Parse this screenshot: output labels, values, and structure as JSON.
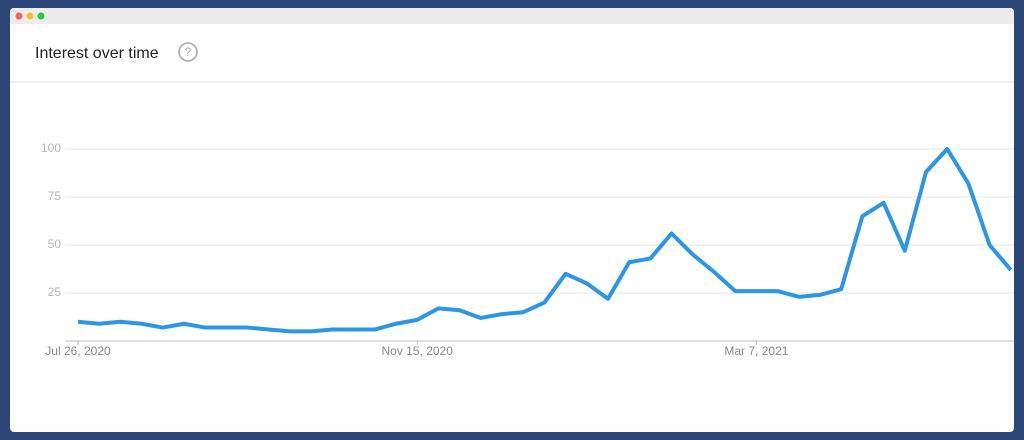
{
  "chart_data": {
    "type": "line",
    "title": "Interest over time",
    "categories": [
      "Jul 26, 2020",
      null,
      null,
      null,
      null,
      null,
      null,
      null,
      null,
      null,
      null,
      null,
      null,
      null,
      null,
      null,
      "Nov 15, 2020",
      null,
      null,
      null,
      null,
      null,
      null,
      null,
      null,
      null,
      null,
      null,
      null,
      null,
      null,
      null,
      "Mar 7, 2021",
      null,
      null,
      null,
      null,
      null,
      null,
      null,
      null,
      null,
      null,
      null,
      null
    ],
    "series": [
      {
        "color": "#2d95e6",
        "values": [
          10,
          9,
          10,
          9,
          7,
          9,
          7,
          7,
          7,
          6,
          5,
          5,
          6,
          6,
          6,
          9,
          11,
          17,
          16,
          12,
          14,
          15,
          20,
          35,
          30,
          22,
          41,
          43,
          56,
          45,
          36,
          26,
          26,
          26,
          23,
          24,
          27,
          65,
          72,
          47,
          88,
          100,
          82,
          50,
          37
        ]
      }
    ],
    "ylim": [
      0,
      100
    ],
    "yticks": [
      25,
      50,
      75,
      100
    ],
    "grid": true
  }
}
